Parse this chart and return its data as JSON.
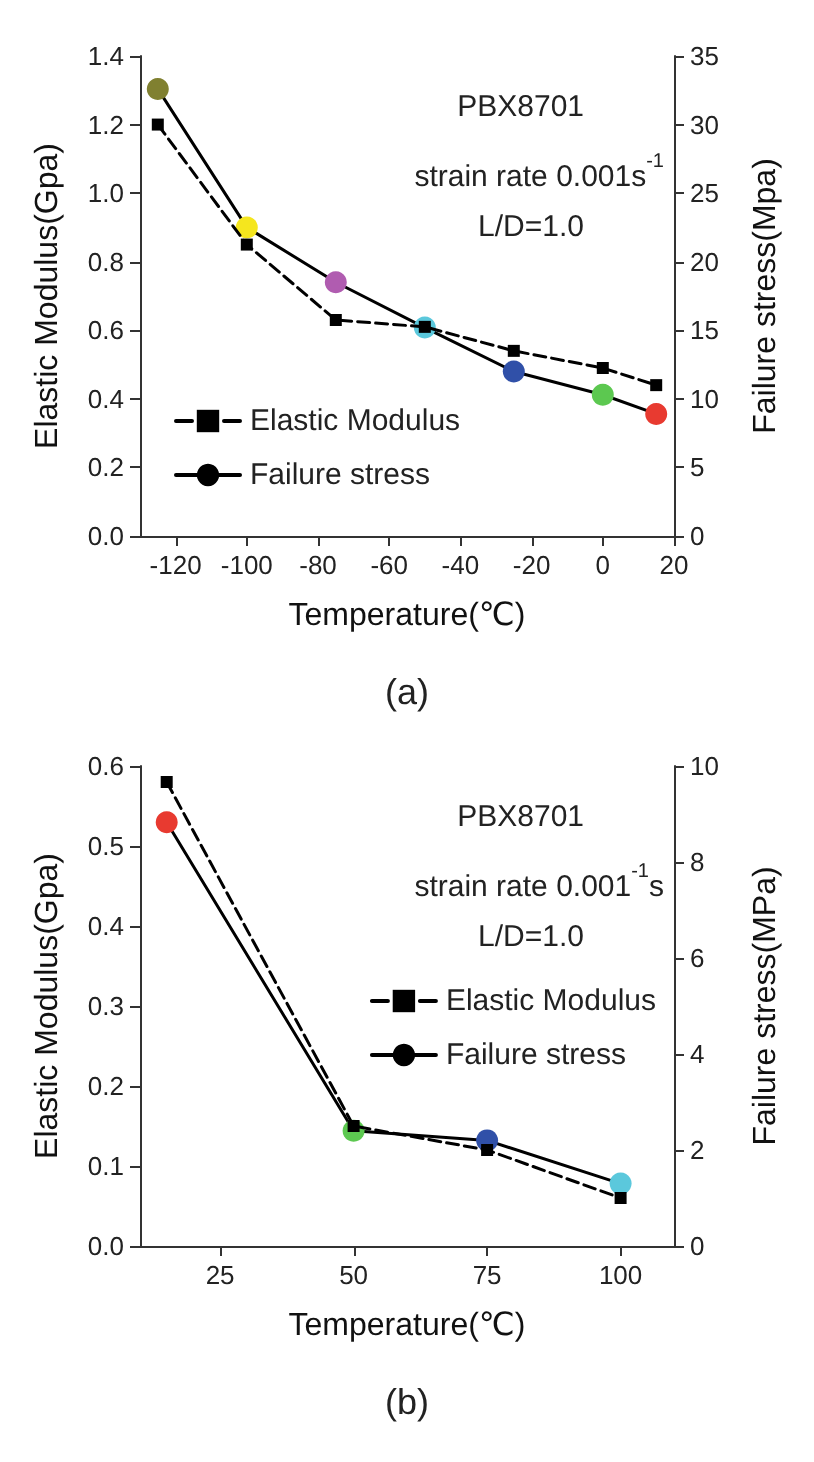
{
  "chart_data": [
    {
      "type": "line",
      "title": "(a)",
      "xlabel": "Temperature(℃)",
      "ylabel": "Elastic Modulus(Gpa)",
      "y2label": "Failure stress(Mpa)",
      "annotations": [
        "PBX8701",
        "strain rate 0.001s$^{-1}$",
        "L/D=1.0"
      ],
      "x": [
        -125,
        -100,
        -75,
        -50,
        -25,
        0,
        15
      ],
      "series": [
        {
          "name": "Elastic Modulus",
          "color": "#000000",
          "marker": "square",
          "line_style": "dashed",
          "values": [
            1.2,
            0.85,
            0.63,
            0.61,
            0.54,
            0.49,
            0.44
          ]
        },
        {
          "name": "Failure stress",
          "color": "#000000",
          "marker": "circle",
          "line_style": "solid",
          "axis": "y2",
          "colors": [
            "#808030",
            "#f5e61e",
            "#b05cb0",
            "#5bc8dc",
            "#3050a8",
            "#5cc850",
            "#e83a30"
          ],
          "values": [
            32.6,
            22.5,
            18.5,
            15.2,
            12,
            10.3,
            8.9
          ]
        }
      ],
      "xlim": [
        -130,
        20
      ],
      "xticks": [
        -120,
        -100,
        -80,
        -60,
        -40,
        -20,
        0,
        20
      ],
      "ylim": [
        0,
        1.4
      ],
      "yticks": [
        {
          "value": 0,
          "label": "0.0"
        },
        {
          "value": 0.2,
          "label": "0.2"
        },
        {
          "value": 0.4,
          "label": "0.4"
        },
        {
          "value": 0.6,
          "label": "0.6"
        },
        {
          "value": 0.8,
          "label": "0.8"
        },
        {
          "value": 1,
          "label": "1.0"
        },
        {
          "value": 1.2,
          "label": "1.2"
        },
        {
          "value": 1.4,
          "label": "1.4"
        }
      ],
      "y2lim": [
        0,
        35
      ],
      "y2ticks": [
        0,
        5,
        10,
        15,
        20,
        25,
        30,
        35
      ],
      "grid": false,
      "legend": "bottom left"
    },
    {
      "type": "line",
      "title": "(b)",
      "xlabel": "Temperature(℃)",
      "ylabel": "Elastic Modulus(Gpa)",
      "y2label": "Failure stress(MPa)",
      "annotations": [
        "PBX8701",
        "strain rate 0.001$^{-1}$s",
        "L/D=1.0"
      ],
      "x": [
        15,
        50,
        75,
        100
      ],
      "series": [
        {
          "name": "Elastic Modulus",
          "color": "#000000",
          "marker": "square",
          "line_style": "dashed",
          "values": [
            0.58,
            0.15,
            0.12,
            0.06
          ]
        },
        {
          "name": "Failure stress",
          "color": "#000000",
          "marker": "circle",
          "line_style": "solid",
          "axis": "y2",
          "colors": [
            "#e83a30",
            "#5cc850",
            "#3050a8",
            "#5bc8dc"
          ],
          "values": [
            8.83,
            2.4,
            2.2,
            1.3
          ]
        }
      ],
      "xlim": [
        10,
        110
      ],
      "xticks": [
        25,
        50,
        75,
        100
      ],
      "ylim": [
        0,
        0.6
      ],
      "yticks": [
        {
          "value": 0,
          "label": "0.0"
        },
        {
          "value": 0.1,
          "label": "0.1"
        },
        {
          "value": 0.2,
          "label": "0.2"
        },
        {
          "value": 0.3,
          "label": "0.3"
        },
        {
          "value": 0.4,
          "label": "0.4"
        },
        {
          "value": 0.5,
          "label": "0.5"
        },
        {
          "value": 0.6,
          "label": "0.6"
        }
      ],
      "y2lim": [
        0,
        10
      ],
      "y2ticks": [
        0,
        2,
        4,
        6,
        8,
        10
      ],
      "grid": false,
      "legend": "center right"
    }
  ]
}
